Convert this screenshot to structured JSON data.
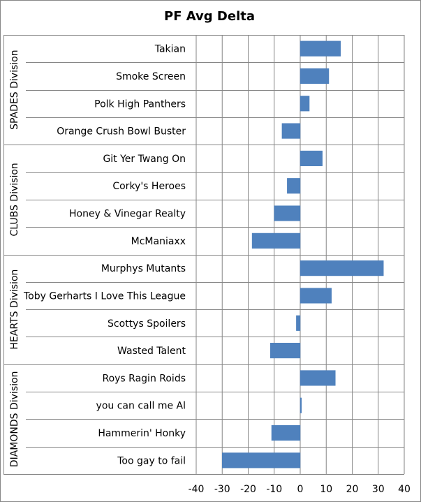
{
  "chart_data": {
    "type": "bar",
    "orientation": "horizontal",
    "title": "PF Avg Delta",
    "xlim": [
      -40,
      40
    ],
    "xticks": [
      -40,
      -30,
      -20,
      -10,
      0,
      10,
      20,
      30,
      40
    ],
    "grid": true,
    "legend": "none",
    "bar_color": "#4F81BD",
    "groups": [
      {
        "name": "SPADES Division",
        "categories": [
          "Takian",
          "Smoke Screen",
          "Polk High Panthers",
          "Orange Crush Bowl Buster"
        ],
        "values": [
          15.5,
          11,
          3.5,
          -7
        ]
      },
      {
        "name": "CLUBS Division",
        "categories": [
          "Git Yer Twang On",
          "Corky's Heroes",
          "Honey & Vinegar Realty",
          "McManiaxx"
        ],
        "values": [
          8.5,
          -5,
          -10,
          -18.5
        ]
      },
      {
        "name": "HEARTS Division",
        "categories": [
          "Murphys Mutants",
          "Toby Gerharts I Love This League",
          "Scottys Spoilers",
          "Wasted Talent"
        ],
        "values": [
          32,
          12,
          -1.5,
          -11.5
        ]
      },
      {
        "name": "DIAMONDS Division",
        "categories": [
          "Roys Ragin Roids",
          "you can call me Al",
          "Hammerin' Honky",
          "Too gay to fail"
        ],
        "values": [
          13.5,
          0.5,
          -11,
          -30
        ]
      }
    ]
  }
}
